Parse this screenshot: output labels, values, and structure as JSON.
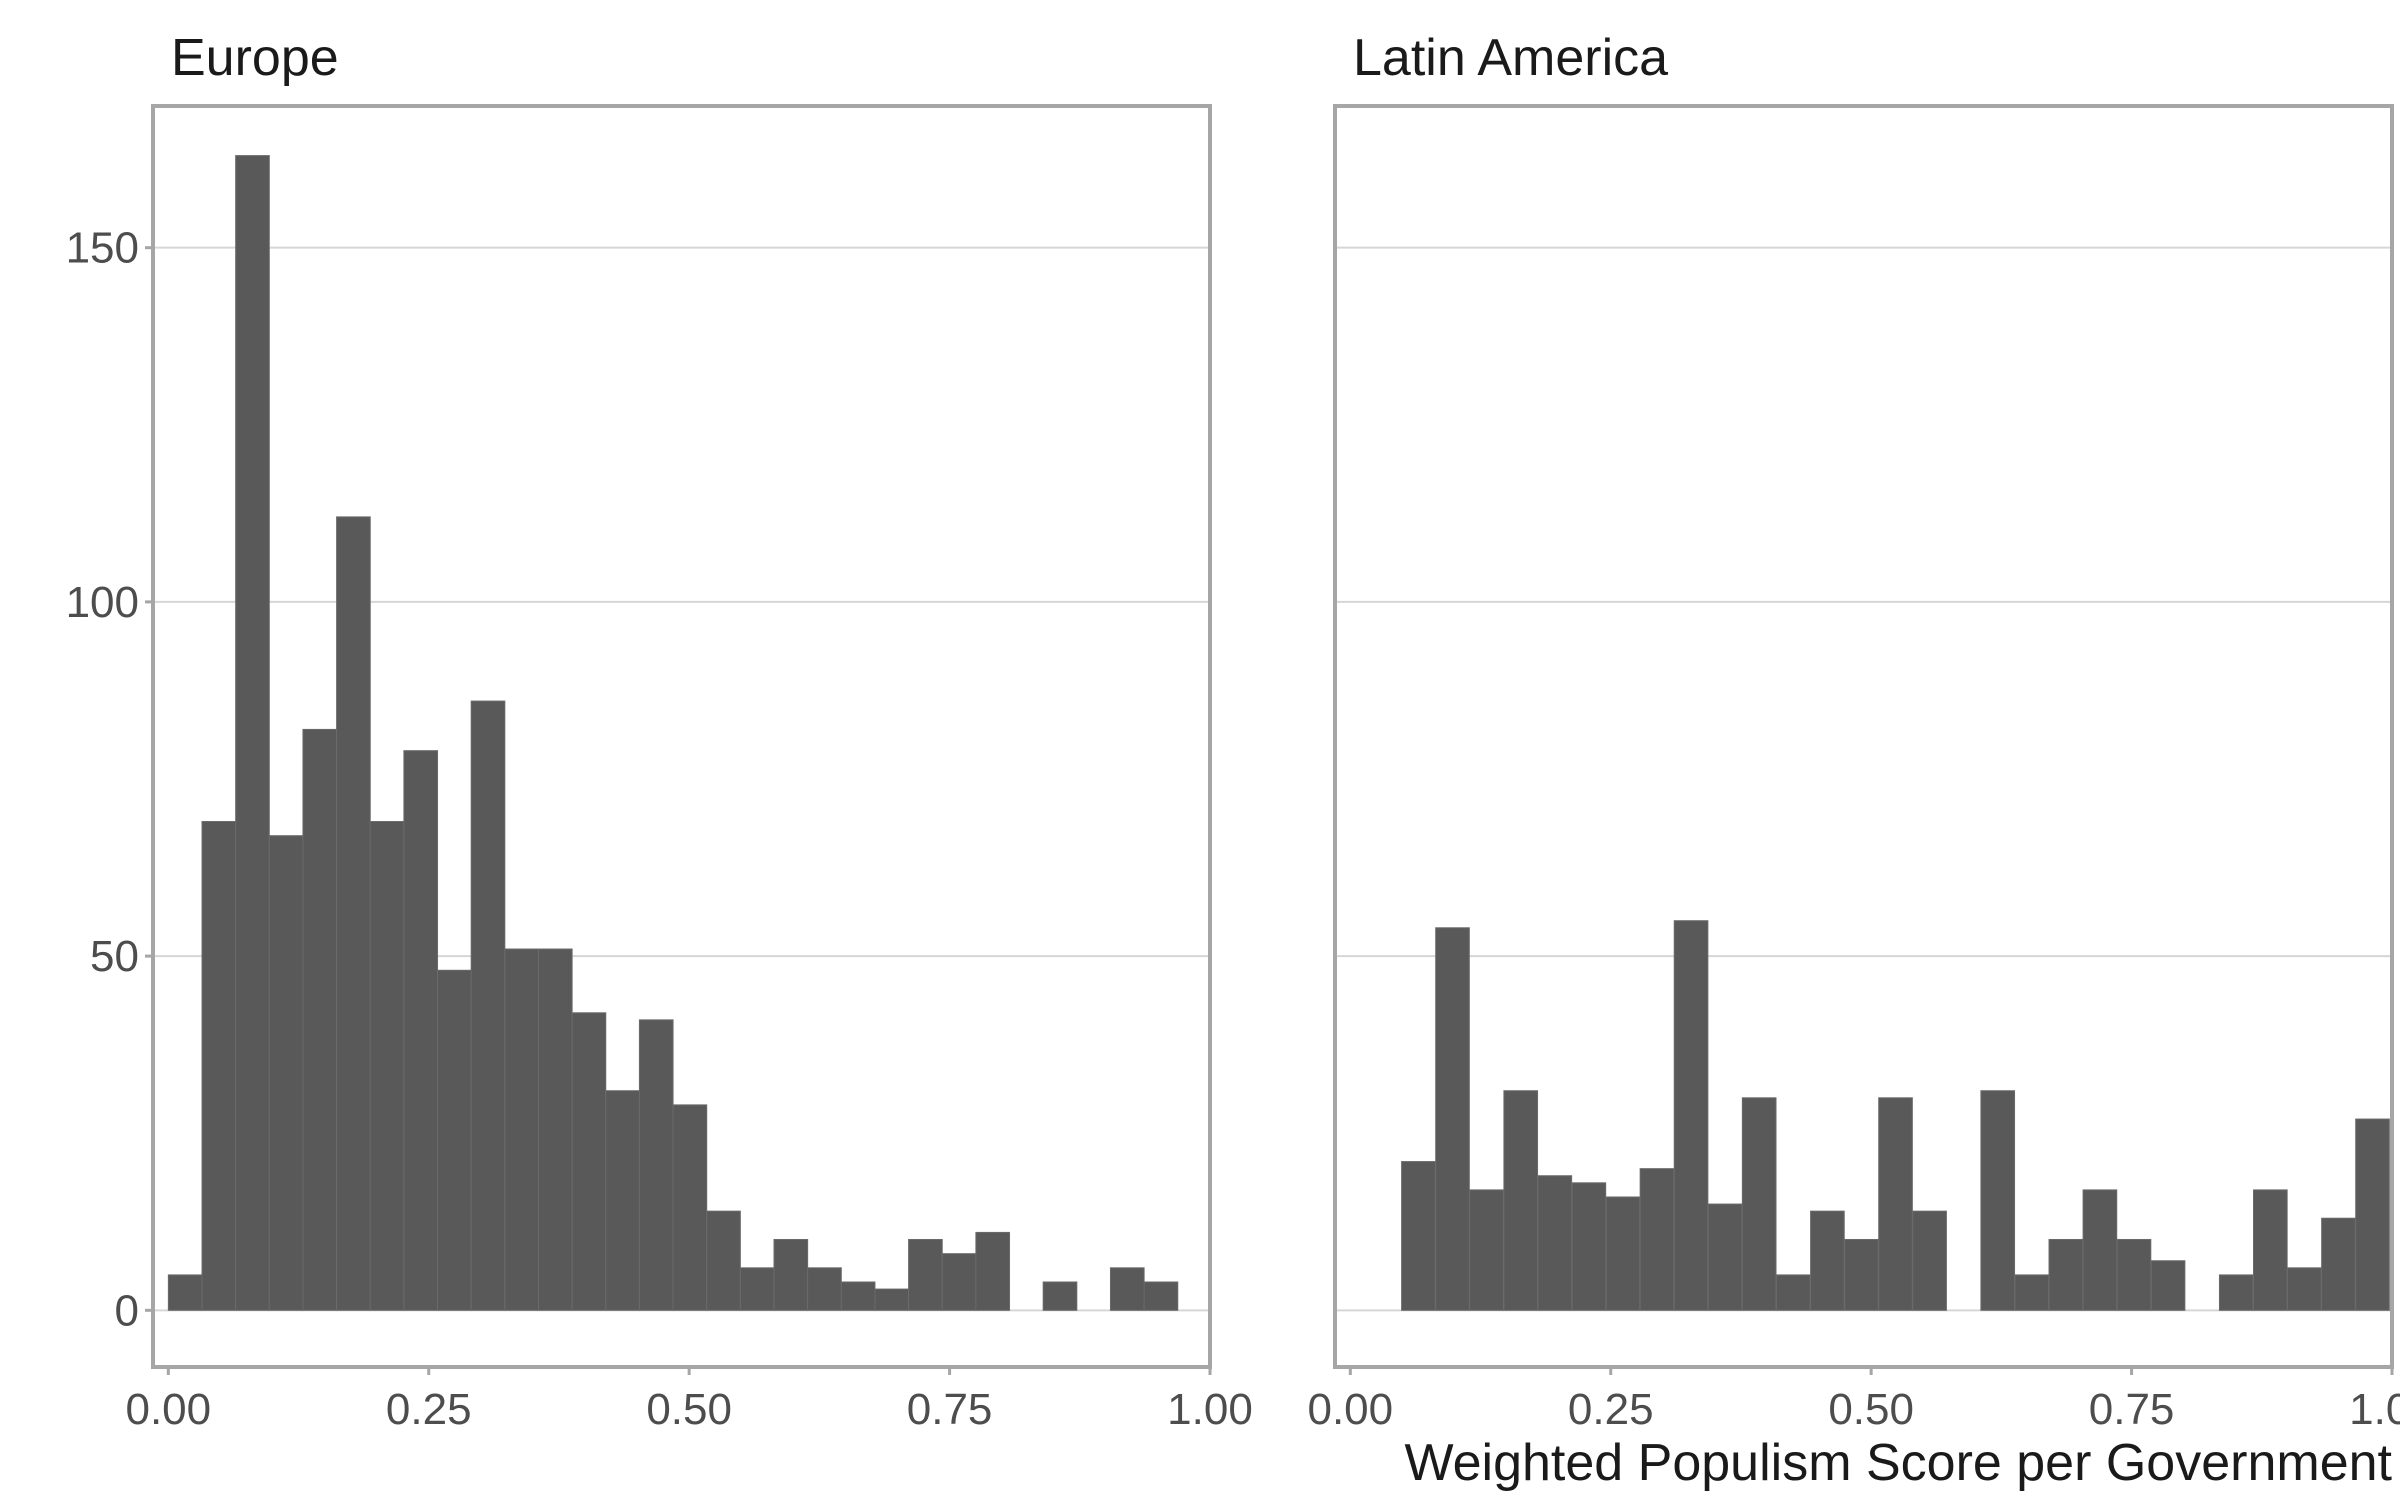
{
  "chart_data": {
    "type": "bar",
    "xlabel": "Weighted Populism Score per Government",
    "ylabel": "",
    "x_ticks": [
      0,
      0.25,
      0.5,
      0.75,
      1
    ],
    "x_tick_labels": [
      "0.00",
      "0.25",
      "0.50",
      "0.75",
      "1.00"
    ],
    "y_ticks": [
      0,
      50,
      100,
      150
    ],
    "y_tick_labels": [
      "0",
      "50",
      "100",
      "150"
    ],
    "xlim": [
      -0.0147,
      1.0
    ],
    "ylim": [
      -8,
      170
    ],
    "grid": "horizontal",
    "bin_width": 0.0323,
    "bin_start": 0.0162,
    "panels": [
      {
        "title": "Europe",
        "counts": [
          5,
          69,
          163,
          67,
          82,
          112,
          69,
          79,
          48,
          86,
          51,
          51,
          42,
          31,
          41,
          29,
          14,
          6,
          10,
          6,
          4,
          3,
          10,
          8,
          11,
          0,
          4,
          0,
          6,
          4,
          0
        ]
      },
      {
        "title": "Latin America",
        "counts": [
          0,
          0,
          0,
          0,
          0,
          0,
          0,
          0,
          0,
          0,
          0,
          0,
          0,
          0,
          0,
          0,
          0,
          0,
          0,
          0,
          0,
          0,
          0,
          0,
          0,
          0,
          0,
          0,
          0,
          0,
          0
        ],
        "bars": [
          {
            "x": 0.0654,
            "count": 21
          },
          {
            "x": 0.0981,
            "count": 54
          },
          {
            "x": 0.1308,
            "count": 17
          },
          {
            "x": 0.1636,
            "count": 31
          },
          {
            "x": 0.1963,
            "count": 19
          },
          {
            "x": 0.229,
            "count": 18
          },
          {
            "x": 0.2617,
            "count": 16
          },
          {
            "x": 0.2944,
            "count": 20
          },
          {
            "x": 0.3271,
            "count": 55
          },
          {
            "x": 0.3598,
            "count": 15
          },
          {
            "x": 0.3925,
            "count": 30
          },
          {
            "x": 0.4252,
            "count": 5
          },
          {
            "x": 0.458,
            "count": 14
          },
          {
            "x": 0.4907,
            "count": 10
          },
          {
            "x": 0.5234,
            "count": 30
          },
          {
            "x": 0.5561,
            "count": 14
          },
          {
            "x": 0.6215,
            "count": 31
          },
          {
            "x": 0.6542,
            "count": 5
          },
          {
            "x": 0.6869,
            "count": 10
          },
          {
            "x": 0.7196,
            "count": 17
          },
          {
            "x": 0.7523,
            "count": 10
          },
          {
            "x": 0.785,
            "count": 7
          },
          {
            "x": 0.8505,
            "count": 5
          },
          {
            "x": 0.8832,
            "count": 17
          },
          {
            "x": 0.9159,
            "count": 6
          },
          {
            "x": 0.9486,
            "count": 13
          },
          {
            "x": 0.9813,
            "count": 27
          }
        ]
      }
    ]
  }
}
